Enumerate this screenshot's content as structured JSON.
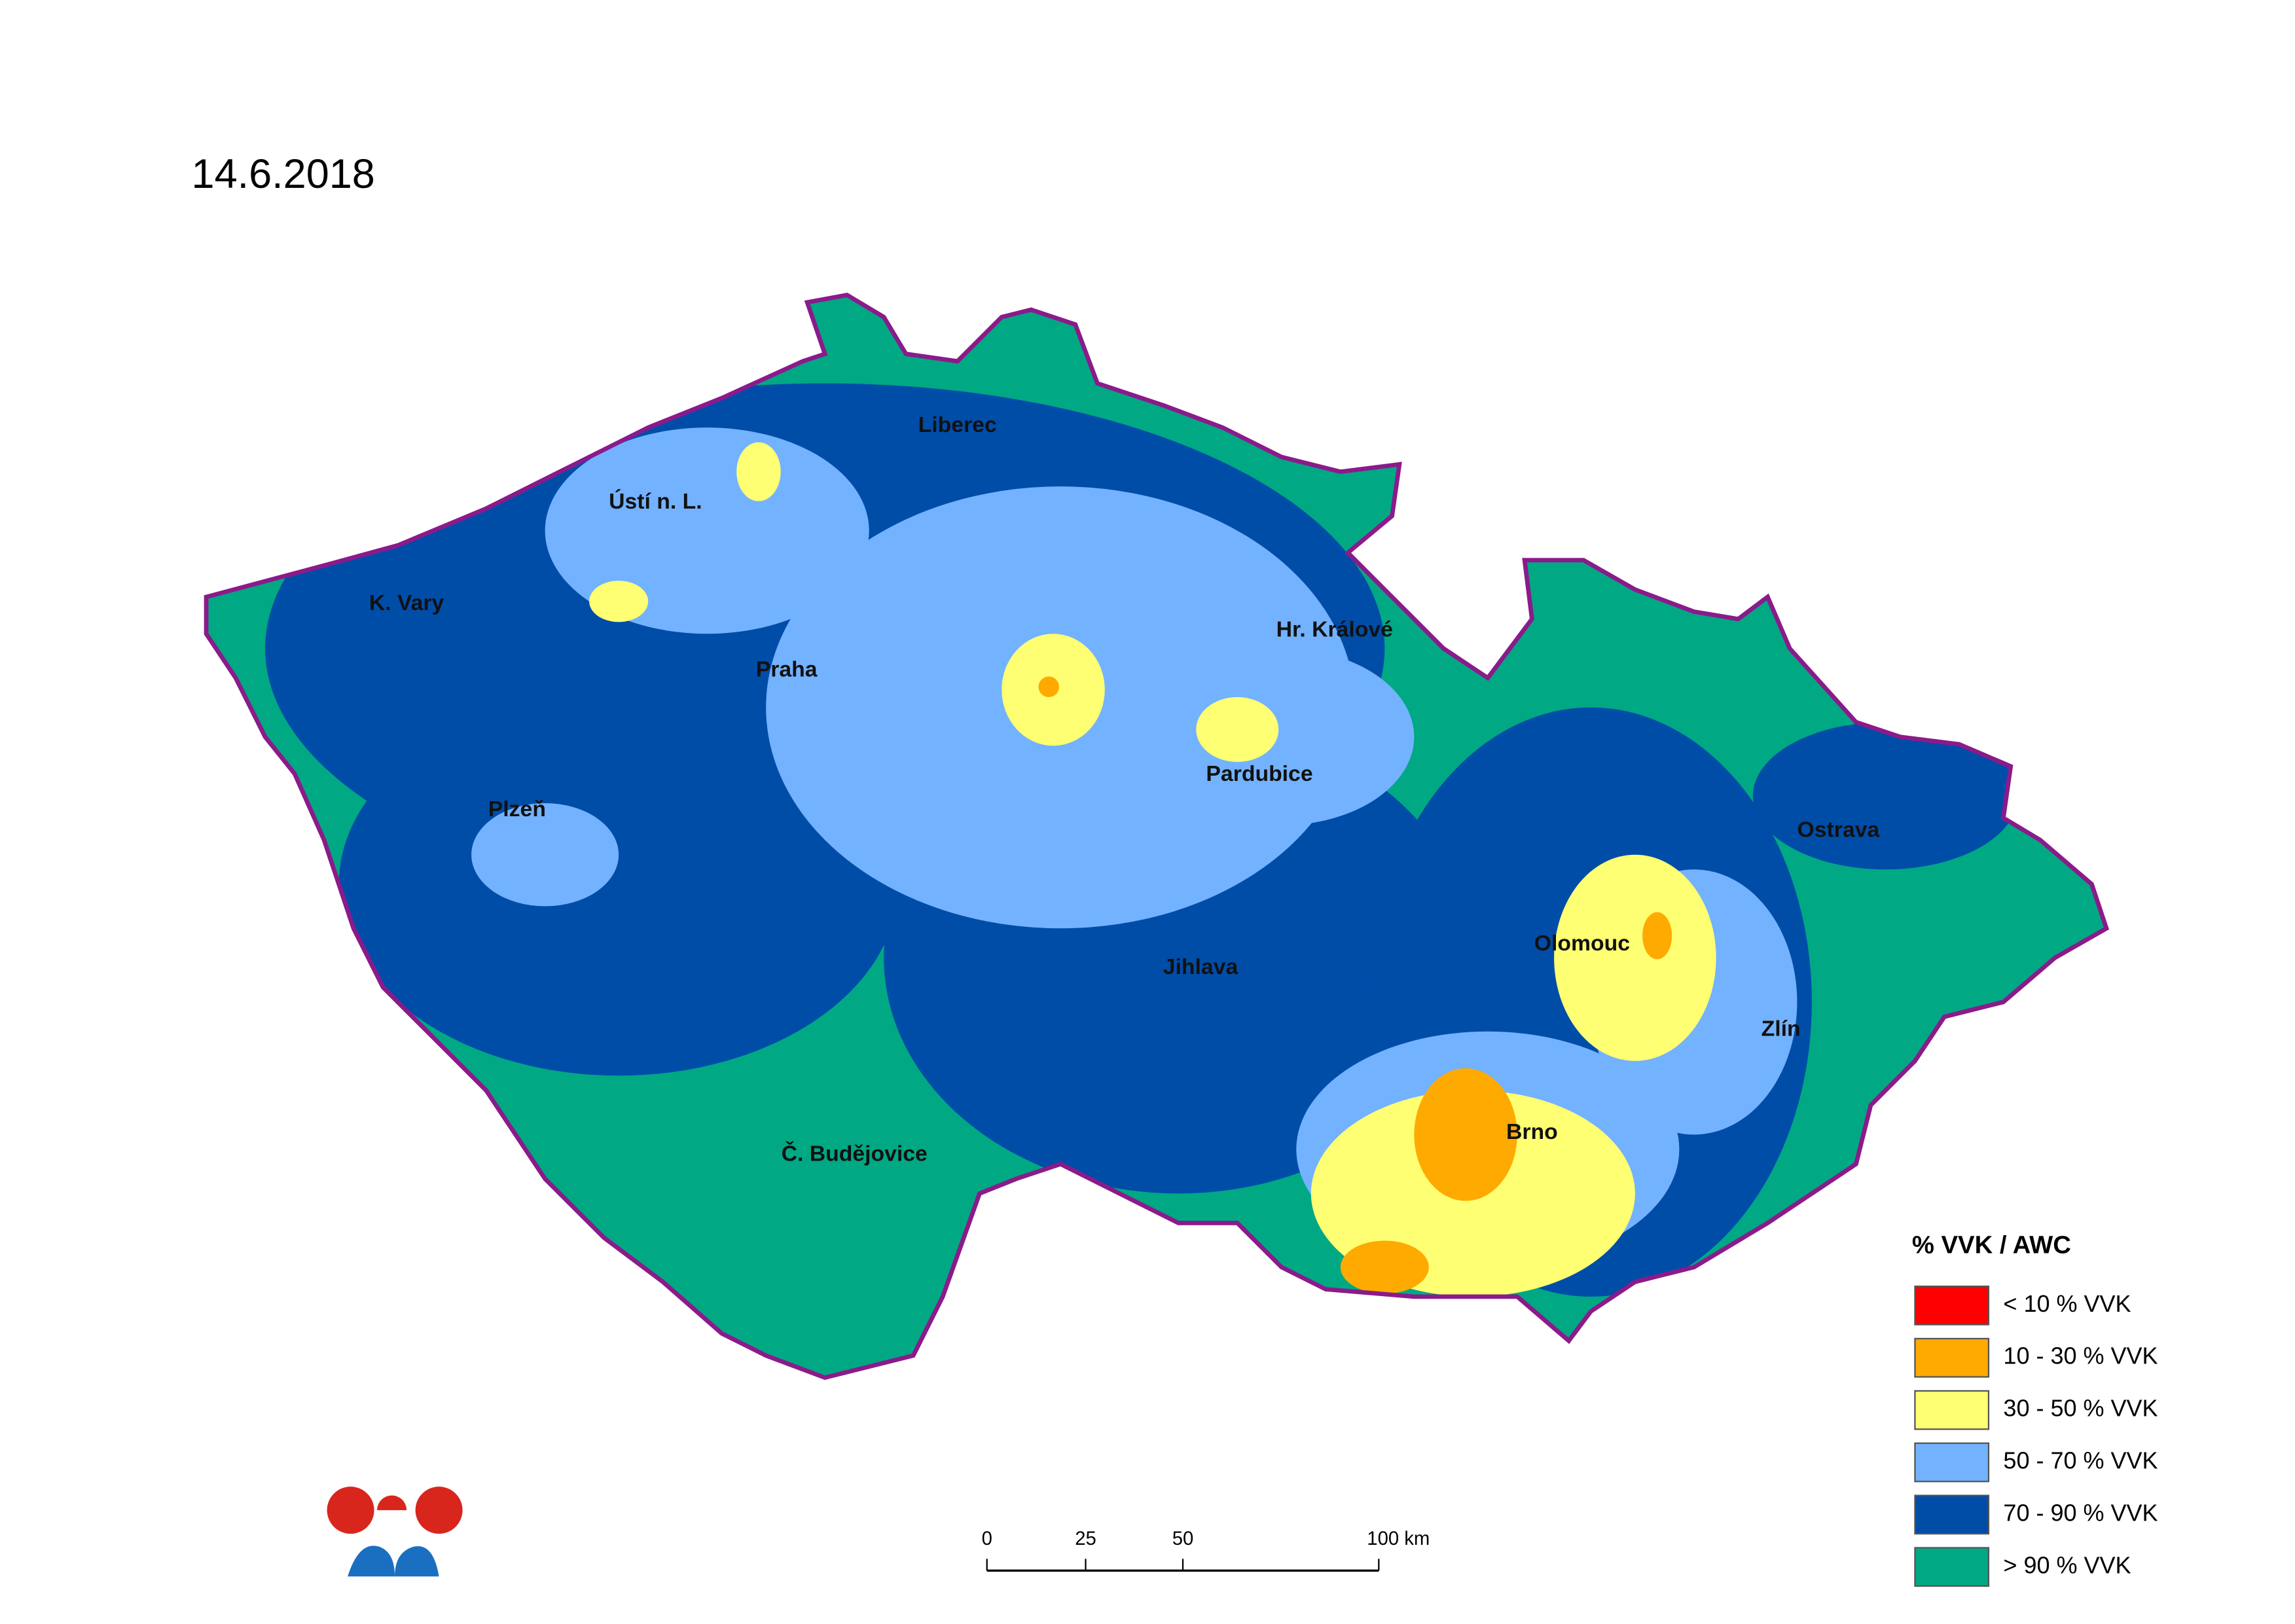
{
  "title": "14.6.2018",
  "cities": [
    "Liberec",
    "Ústí n. L.",
    "K. Vary",
    "Praha",
    "Hr. Králové",
    "Pardubice",
    "Plzeň",
    "Ostrava",
    "Olomouc",
    "Jihlava",
    "Zlín",
    "Brno",
    "Č. Budějovice"
  ],
  "legend": {
    "title": "% VVK / AWC",
    "items": [
      {
        "label": "< 10 % VVK",
        "color": "#ff0000"
      },
      {
        "label": "10 - 30 % VVK",
        "color": "#ffaa00"
      },
      {
        "label": "30 - 50 % VVK",
        "color": "#ffff73"
      },
      {
        "label": "50 - 70 % VVK",
        "color": "#73b2ff"
      },
      {
        "label": "70 - 90 % VVK",
        "color": "#004da8"
      },
      {
        "label": "> 90 % VVK",
        "color": "#00a884"
      }
    ]
  },
  "scale_bar": {
    "labels": [
      "0",
      "25",
      "50",
      "100 km"
    ]
  }
}
